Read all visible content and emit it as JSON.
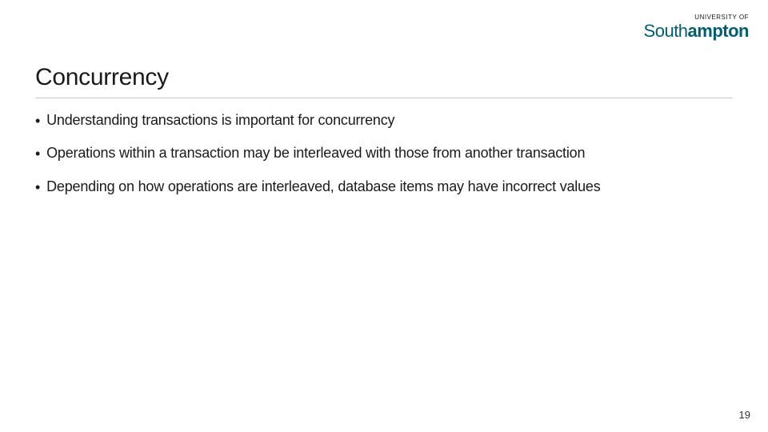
{
  "logo": {
    "top_text": "UNIVERSITY OF",
    "main_prefix": "South",
    "main_bold": "ampton",
    "color": "#005e6e"
  },
  "slide": {
    "title": "Concurrency",
    "title_fontsize": 30,
    "title_color": "#1a1a1a",
    "underline_color": "#c9c9c9",
    "bullets": [
      "Understanding transactions is important for concurrency",
      "Operations within a transaction may be interleaved with those from another transaction",
      "Depending on how operations are interleaved, database items may have incorrect values"
    ],
    "bullet_fontsize": 18,
    "bullet_color": "#1a1a1a",
    "bullet_marker": "•",
    "background_color": "#ffffff"
  },
  "page_number": "19"
}
